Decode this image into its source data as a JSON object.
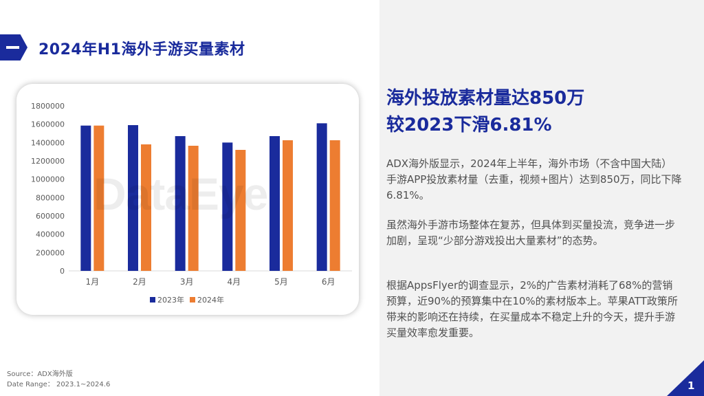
{
  "page": {
    "title": "2024年H1海外手游买量素材",
    "page_number": "1",
    "brand_color": "#1a2b9c"
  },
  "watermark": "DataEye",
  "headline": {
    "line1": "海外投放素材量达850万",
    "line2": "较2023下滑6.81%"
  },
  "paragraphs": [
    "ADX海外版显示，2024年上半年，海外市场（不含中国大陆）手游APP投放素材量（去重，视频+图片）达到850万，同比下降6.81%。",
    "虽然海外手游市场整体在复苏，但具体到买量投流，竞争进一步加剧，呈现“少部分游戏投出大量素材”的态势。",
    "根据AppsFlyer的调查显示，2%的广告素材消耗了68%的营销预算，近90%的预算集中在10%的素材版本上。苹果ATT政策所带来的影响还在持续，在买量成本不稳定上升的今天，提升手游买量效率愈发重要。"
  ],
  "source": {
    "line1": "Source：ADX海外版",
    "line2": "Date Range： 2023.1~2024.6"
  },
  "chart_data": {
    "type": "bar",
    "categories": [
      "1月",
      "2月",
      "3月",
      "4月",
      "5月",
      "6月"
    ],
    "series": [
      {
        "name": "2023年",
        "color": "#1a2b9c",
        "values": [
          1585000,
          1590000,
          1470000,
          1400000,
          1470000,
          1610000
        ]
      },
      {
        "name": "2024年",
        "color": "#ed7d31",
        "values": [
          1585000,
          1380000,
          1365000,
          1320000,
          1425000,
          1425000
        ]
      }
    ],
    "ylim": [
      0,
      1800000
    ],
    "yticks": [
      "0",
      "200000",
      "400000",
      "600000",
      "800000",
      "1000000",
      "1200000",
      "1400000",
      "1600000",
      "1800000"
    ],
    "grid": false,
    "legend": "bottom",
    "title": "",
    "xlabel": "",
    "ylabel": ""
  }
}
